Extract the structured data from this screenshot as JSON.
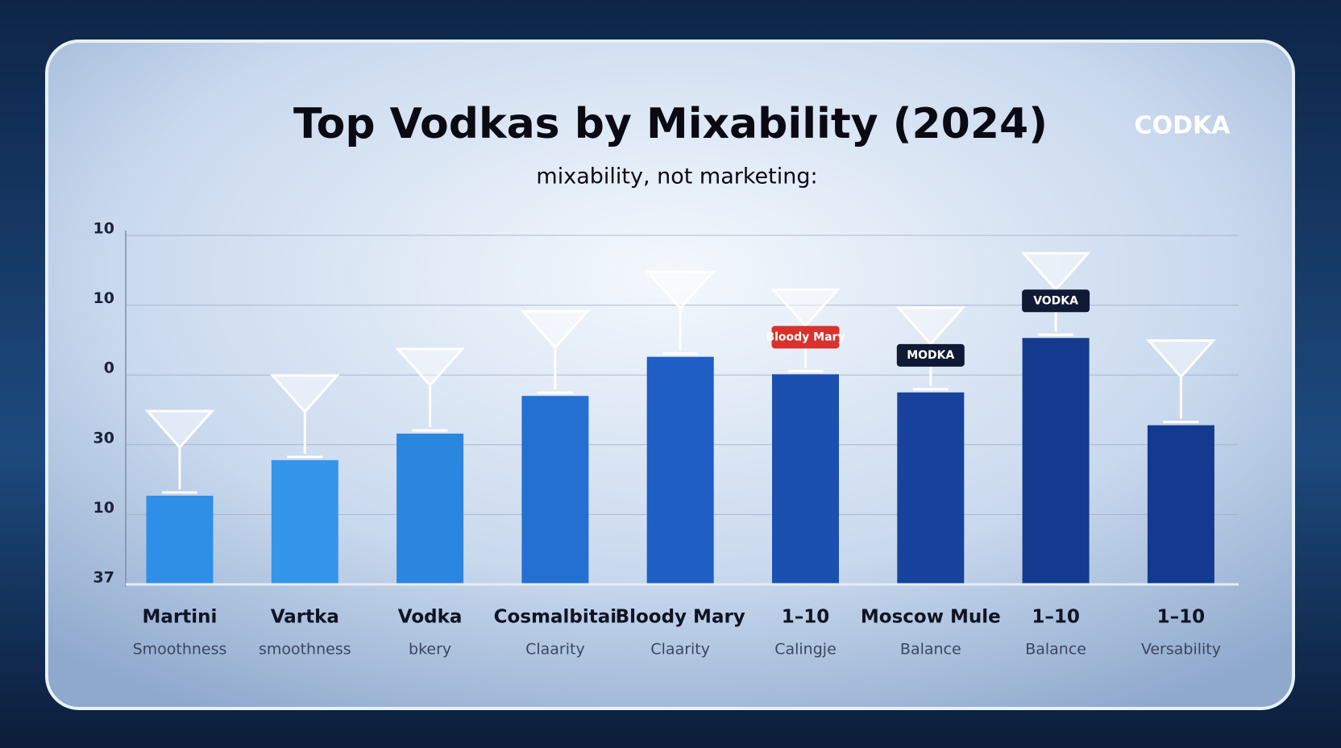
{
  "chart_data": {
    "type": "bar",
    "title": "Top Vodkas by Mixability (2024)",
    "subtitle": "mixability, not marketing:",
    "logo": "CODKA",
    "categories": [
      "Martini",
      "Vartka",
      "Vodka",
      "Cosmalbitai",
      "Bloody Mary",
      "1–10",
      "Moscow Mule",
      "1–10",
      "1–10"
    ],
    "sublabels": [
      "Smoothness",
      "smoothness",
      "bkery",
      "Claarity",
      "Claarity",
      "Calingje",
      "Balance",
      "Balance",
      "Versability"
    ],
    "values": [
      1.27,
      1.78,
      2.16,
      2.7,
      3.26,
      3.01,
      2.75,
      3.53,
      2.28
    ],
    "colors": [
      "#2f8fe6",
      "#3496ea",
      "#2b86e0",
      "#2470d2",
      "#1f5ec4",
      "#1b50b0",
      "#17439d",
      "#143a8f",
      "#143a8f"
    ],
    "product_labels": [
      {
        "index": 5,
        "text": "Bloody Mary"
      },
      {
        "index": 6,
        "text": "MODKA"
      },
      {
        "index": 7,
        "text": "VODKA"
      }
    ],
    "ylim": [
      0,
      5
    ],
    "yticks": [
      {
        "value": 0,
        "label": "37"
      },
      {
        "value": 1,
        "label": "10"
      },
      {
        "value": 2,
        "label": "30"
      },
      {
        "value": 3,
        "label": "0"
      },
      {
        "value": 4,
        "label": "10"
      },
      {
        "value": 5,
        "label": "10"
      }
    ],
    "grid": true
  }
}
